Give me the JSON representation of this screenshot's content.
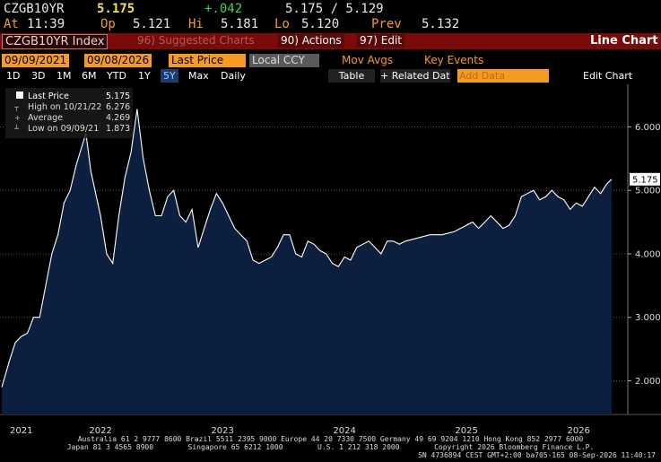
{
  "header": {
    "ticker": "CZGB10YR",
    "last": "5.175",
    "change": "+.042",
    "bid_ask": "5.175 / 5.129",
    "time_label": "At",
    "time": "11:39",
    "open_label": "Op",
    "open": "5.121",
    "high_label": "Hi",
    "high": "5.181",
    "low_label": "Lo",
    "low": "5.120",
    "prev_label": "Prev",
    "prev": "5.132"
  },
  "toolbar": {
    "security": "CZGB10YR Index",
    "suggested": "96) Suggested Charts",
    "actions": "90) Actions",
    "edit": "97) Edit",
    "chart_type": "Line Chart"
  },
  "controls": {
    "start_date": "09/09/2021",
    "end_date": "09/08/2026",
    "field": "Last Price",
    "currency": "Local CCY",
    "mov_avgs": "Mov Avgs",
    "key_events": "Key Events"
  },
  "periods": [
    "1D",
    "3D",
    "1M",
    "6M",
    "YTD",
    "1Y",
    "5Y",
    "Max"
  ],
  "period_selected": "5Y",
  "frequency": "Daily",
  "table": "Table",
  "related": "+ Related Dat",
  "add_data": "Add Data",
  "edit_chart": "Edit Chart",
  "footer": [
    "Australia 61 2 9777 8600 Brazil 5511 2395 9000 Europe 44 20 7330 7500 Germany 49 69 9204 1210 Hong Kong 852 2977 6000",
    "Japan 81 3 4565 8900        Singapore 65 6212 1000        U.S. 1 212 318 2000        Copyright 2026 Bloomberg Finance L.P.",
    "SN 4736894 CEST GMT+2:00 ba705-165 08-Sep-2026 11:40:17"
  ],
  "chart_data": {
    "type": "area",
    "x": [
      2021.69,
      2021.75,
      2021.8,
      2021.85,
      2021.9,
      2021.95,
      2022.0,
      2022.05,
      2022.1,
      2022.15,
      2022.2,
      2022.25,
      2022.3,
      2022.38,
      2022.42,
      2022.5,
      2022.55,
      2022.6,
      2022.65,
      2022.7,
      2022.75,
      2022.8,
      2022.85,
      2022.9,
      2022.95,
      2023.0,
      2023.05,
      2023.1,
      2023.15,
      2023.2,
      2023.25,
      2023.3,
      2023.35,
      2023.4,
      2023.45,
      2023.5,
      2023.55,
      2023.6,
      2023.65,
      2023.7,
      2023.75,
      2023.8,
      2023.85,
      2023.9,
      2023.95,
      2024.0,
      2024.05,
      2024.1,
      2024.15,
      2024.2,
      2024.25,
      2024.3,
      2024.35,
      2024.4,
      2024.45,
      2024.5,
      2024.55,
      2024.6,
      2024.65,
      2024.7,
      2024.75,
      2024.8,
      2024.85,
      2024.9,
      2024.95,
      2025.0,
      2025.1,
      2025.2,
      2025.3,
      2025.4,
      2025.5,
      2025.55,
      2025.6,
      2025.65,
      2025.7,
      2025.75,
      2025.8,
      2025.85,
      2025.9,
      2025.95,
      2026.0,
      2026.05,
      2026.1,
      2026.15,
      2026.2,
      2026.25,
      2026.3,
      2026.35,
      2026.4,
      2026.45,
      2026.5,
      2026.55,
      2026.6,
      2026.65,
      2026.69
    ],
    "series": [
      {
        "name": "Last Price",
        "current": "5.175",
        "color": "#ffffff",
        "fill": "#0c1f3e",
        "values": [
          1.9,
          2.3,
          2.6,
          2.7,
          2.75,
          3.0,
          3.0,
          3.5,
          4.0,
          4.3,
          4.8,
          5.0,
          5.4,
          5.9,
          5.3,
          4.6,
          4.0,
          3.85,
          4.6,
          5.2,
          5.6,
          6.28,
          5.5,
          5.0,
          4.6,
          4.6,
          4.9,
          5.0,
          4.6,
          4.5,
          4.7,
          4.1,
          4.4,
          4.7,
          4.95,
          4.8,
          4.6,
          4.4,
          4.3,
          4.2,
          3.9,
          3.85,
          3.9,
          3.95,
          4.1,
          4.3,
          4.3,
          4.0,
          3.95,
          4.2,
          4.15,
          4.05,
          4.0,
          3.85,
          3.8,
          3.95,
          3.9,
          4.1,
          4.15,
          4.2,
          4.1,
          4.0,
          4.2,
          4.2,
          4.15,
          4.2,
          4.25,
          4.3,
          4.3,
          4.35,
          4.45,
          4.5,
          4.4,
          4.5,
          4.6,
          4.5,
          4.4,
          4.45,
          4.6,
          4.9,
          4.95,
          5.0,
          4.85,
          4.9,
          5.0,
          4.9,
          4.85,
          4.7,
          4.8,
          4.75,
          4.9,
          5.05,
          4.95,
          5.1,
          5.175
        ]
      }
    ],
    "stats": [
      {
        "label": "High on 10/21/22",
        "value": "6.276"
      },
      {
        "label": "Average",
        "value": "4.269"
      },
      {
        "label": "Low on 09/09/21",
        "value": "1.873"
      }
    ],
    "xlim": [
      2021.69,
      2026.72
    ],
    "xticks": [
      {
        "value": 2021.85,
        "label": "2021"
      },
      {
        "value": 2022.5,
        "label": "2022"
      },
      {
        "value": 2023.5,
        "label": "2023"
      },
      {
        "value": 2024.5,
        "label": "2024"
      },
      {
        "value": 2025.5,
        "label": "2025"
      },
      {
        "value": 2026.42,
        "label": "2026"
      }
    ],
    "ylim": [
      1.47,
      6.67
    ],
    "yticks": [
      {
        "value": 2,
        "label": "2.000"
      },
      {
        "value": 3,
        "label": "3.000"
      },
      {
        "value": 4,
        "label": "4.000"
      },
      {
        "value": 5,
        "label": "5.000"
      },
      {
        "value": 6,
        "label": "6.000"
      }
    ],
    "grid": true
  }
}
